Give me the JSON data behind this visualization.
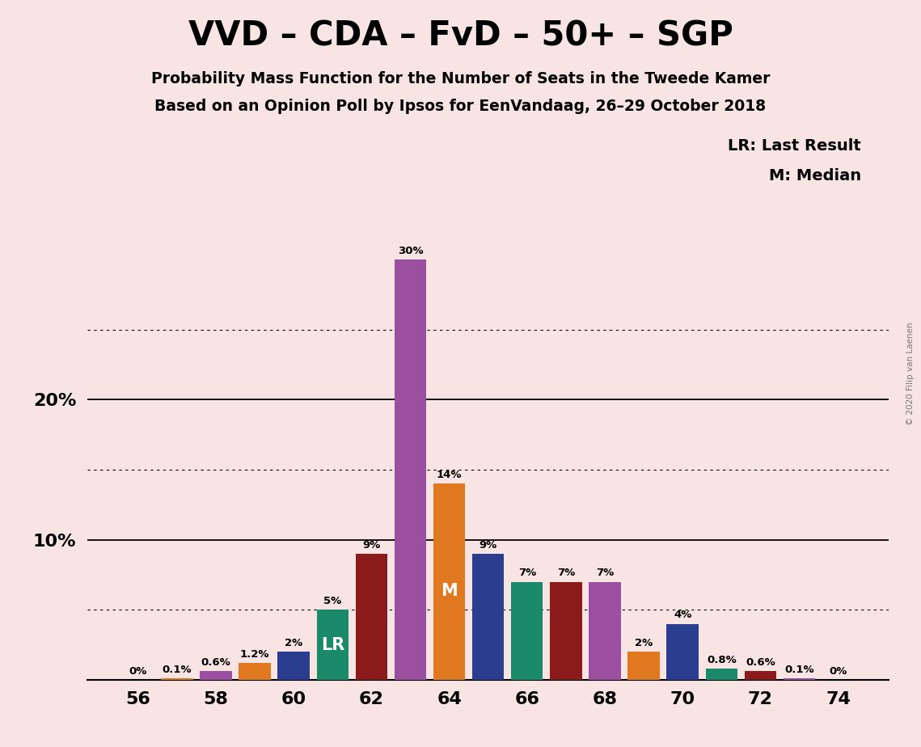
{
  "title": "VVD – CDA – FvD – 50+ – SGP",
  "subtitle1": "Probability Mass Function for the Number of Seats in the Tweede Kamer",
  "subtitle2": "Based on an Opinion Poll by Ipsos for EenVandaag, 26–29 October 2018",
  "copyright": "© 2020 Filip van Laenen",
  "legend_lr": "LR: Last Result",
  "legend_m": "M: Median",
  "seats": [
    56,
    57,
    58,
    59,
    60,
    61,
    62,
    63,
    64,
    65,
    66,
    67,
    68,
    69,
    70,
    71,
    72,
    73,
    74
  ],
  "values": [
    0.0,
    0.1,
    0.6,
    1.2,
    2.0,
    5.0,
    9.0,
    30.0,
    14.0,
    9.0,
    7.0,
    7.0,
    7.0,
    2.0,
    4.0,
    0.8,
    0.6,
    0.1,
    0.0
  ],
  "colors": [
    "#9b4fa0",
    "#e07820",
    "#9b4fa0",
    "#e07820",
    "#2b3d8f",
    "#1a8a6a",
    "#8b1a1a",
    "#9b4fa0",
    "#e07820",
    "#2b3d8f",
    "#1a8a6a",
    "#8b1a1a",
    "#9b4fa0",
    "#e07820",
    "#2b3d8f",
    "#1a8a6a",
    "#8b1a1a",
    "#9b4fa0",
    "#e07820"
  ],
  "lr_seat": 61,
  "median_seat": 64,
  "label_percentages": [
    "0%",
    "0.1%",
    "0.6%",
    "1.2%",
    "2%",
    "5%",
    "9%",
    "30%",
    "14%",
    "9%",
    "7%",
    "7%",
    "7%",
    "2%",
    "4%",
    "0.8%",
    "0.6%",
    "0.1%",
    "0%"
  ],
  "background_color": "#f9e4e4",
  "dotted_lines": [
    5,
    15,
    25
  ],
  "solid_lines": [
    10,
    20
  ],
  "ylim": [
    0,
    32
  ],
  "xlim_left": 54.7,
  "xlim_right": 75.3
}
